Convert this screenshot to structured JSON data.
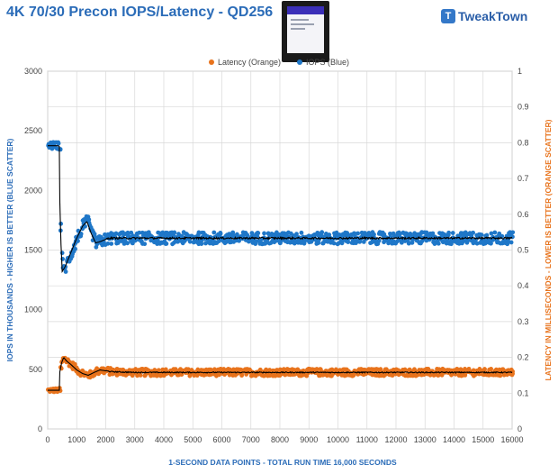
{
  "header": {
    "title": "4K 70/30 Precon IOPS/Latency - QD256",
    "brand": "TweakTown"
  },
  "chart_data": {
    "type": "scatter",
    "title": "4K 70/30 Precon IOPS/Latency - QD256",
    "xlabel": "1-SECOND  DATA POINTS - TOTAL RUN TIME 16,000 SECONDS",
    "ylabel_left": "IOPS IN THOUSANDS - HIGHER IS BETTER (BLUE SCATTER)",
    "ylabel_right": "LATENCY IN MILLISECONDS - LOWER IS BETTER (ORANGE SCATTER)",
    "xlim": [
      0,
      16000
    ],
    "ylim_left": [
      0,
      3000
    ],
    "ylim_right": [
      0,
      1
    ],
    "x_ticks": [
      "0",
      "1000",
      "2000",
      "3000",
      "4000",
      "5000",
      "6000",
      "7000",
      "8000",
      "9000",
      "10000",
      "11000",
      "12000",
      "13000",
      "14000",
      "15000",
      "16000"
    ],
    "y_left_ticks": [
      "0",
      "500",
      "1000",
      "1500",
      "2000",
      "2500",
      "3000"
    ],
    "y_right_ticks": [
      "0",
      "0.1",
      "0.2",
      "0.3",
      "0.4",
      "0.5",
      "0.6",
      "0.7",
      "0.8",
      "0.9",
      "1"
    ],
    "grid": true,
    "legend_position": "top-center",
    "series": [
      {
        "name": "Latency (Orange)",
        "axis": "right",
        "color": "#e8731c",
        "trend_points": [
          [
            0,
            0.108
          ],
          [
            400,
            0.108
          ],
          [
            420,
            0.16
          ],
          [
            480,
            0.185
          ],
          [
            550,
            0.2
          ],
          [
            650,
            0.19
          ],
          [
            800,
            0.18
          ],
          [
            1000,
            0.165
          ],
          [
            1200,
            0.155
          ],
          [
            1400,
            0.15
          ],
          [
            1600,
            0.158
          ],
          [
            1800,
            0.165
          ],
          [
            2200,
            0.16
          ],
          [
            3000,
            0.158
          ],
          [
            5000,
            0.158
          ],
          [
            8000,
            0.158
          ],
          [
            12000,
            0.158
          ],
          [
            16000,
            0.158
          ]
        ],
        "scatter_spread": 0.01
      },
      {
        "name": "IOPS (Blue)",
        "axis": "left",
        "color": "#1f77c8",
        "trend_points": [
          [
            0,
            2375
          ],
          [
            350,
            2375
          ],
          [
            400,
            2370
          ],
          [
            420,
            1900
          ],
          [
            450,
            1600
          ],
          [
            500,
            1320
          ],
          [
            600,
            1360
          ],
          [
            800,
            1480
          ],
          [
            1000,
            1600
          ],
          [
            1200,
            1700
          ],
          [
            1350,
            1740
          ],
          [
            1500,
            1640
          ],
          [
            1650,
            1560
          ],
          [
            1800,
            1570
          ],
          [
            2100,
            1600
          ],
          [
            3000,
            1600
          ],
          [
            5000,
            1600
          ],
          [
            8000,
            1600
          ],
          [
            12000,
            1600
          ],
          [
            16000,
            1600
          ]
        ],
        "scatter_spread": 50
      }
    ]
  },
  "colors": {
    "title": "#2b6cb8",
    "axis_left": "#2b6cb8",
    "axis_right": "#e8731c",
    "grid": "#d8d8d8",
    "trend": "#000000"
  }
}
